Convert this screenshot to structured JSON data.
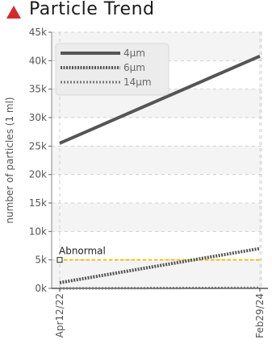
{
  "header": {
    "title": "Particle Trend",
    "icon": "trend-warning-icon",
    "icon_color": "#d42a2a"
  },
  "chart_data": {
    "type": "line",
    "title": "Particle Trend",
    "ylabel": "number of particles (1 ml)",
    "xlabel": "",
    "categories": [
      "Apr12/22",
      "Feb29/24"
    ],
    "y_ticks": [
      "0k",
      "5k",
      "10k",
      "15k",
      "20k",
      "25k",
      "30k",
      "35k",
      "40k",
      "45k"
    ],
    "y_tick_values": [
      0,
      5000,
      10000,
      15000,
      20000,
      25000,
      30000,
      35000,
      40000,
      45000
    ],
    "ylim": [
      0,
      45000
    ],
    "grid": true,
    "legend_position": "top-left",
    "series": [
      {
        "name": "4μm",
        "values": [
          25500,
          40800
        ],
        "color": "#555555",
        "style": "solid"
      },
      {
        "name": "6μm",
        "values": [
          1000,
          7000
        ],
        "color": "#555555",
        "style": "dense-dotted"
      },
      {
        "name": "14μm",
        "values": [
          0,
          100
        ],
        "color": "#777777",
        "style": "dotted"
      }
    ],
    "threshold": {
      "label": "Abnormal",
      "value": 5000,
      "color": "#f2c200"
    }
  }
}
